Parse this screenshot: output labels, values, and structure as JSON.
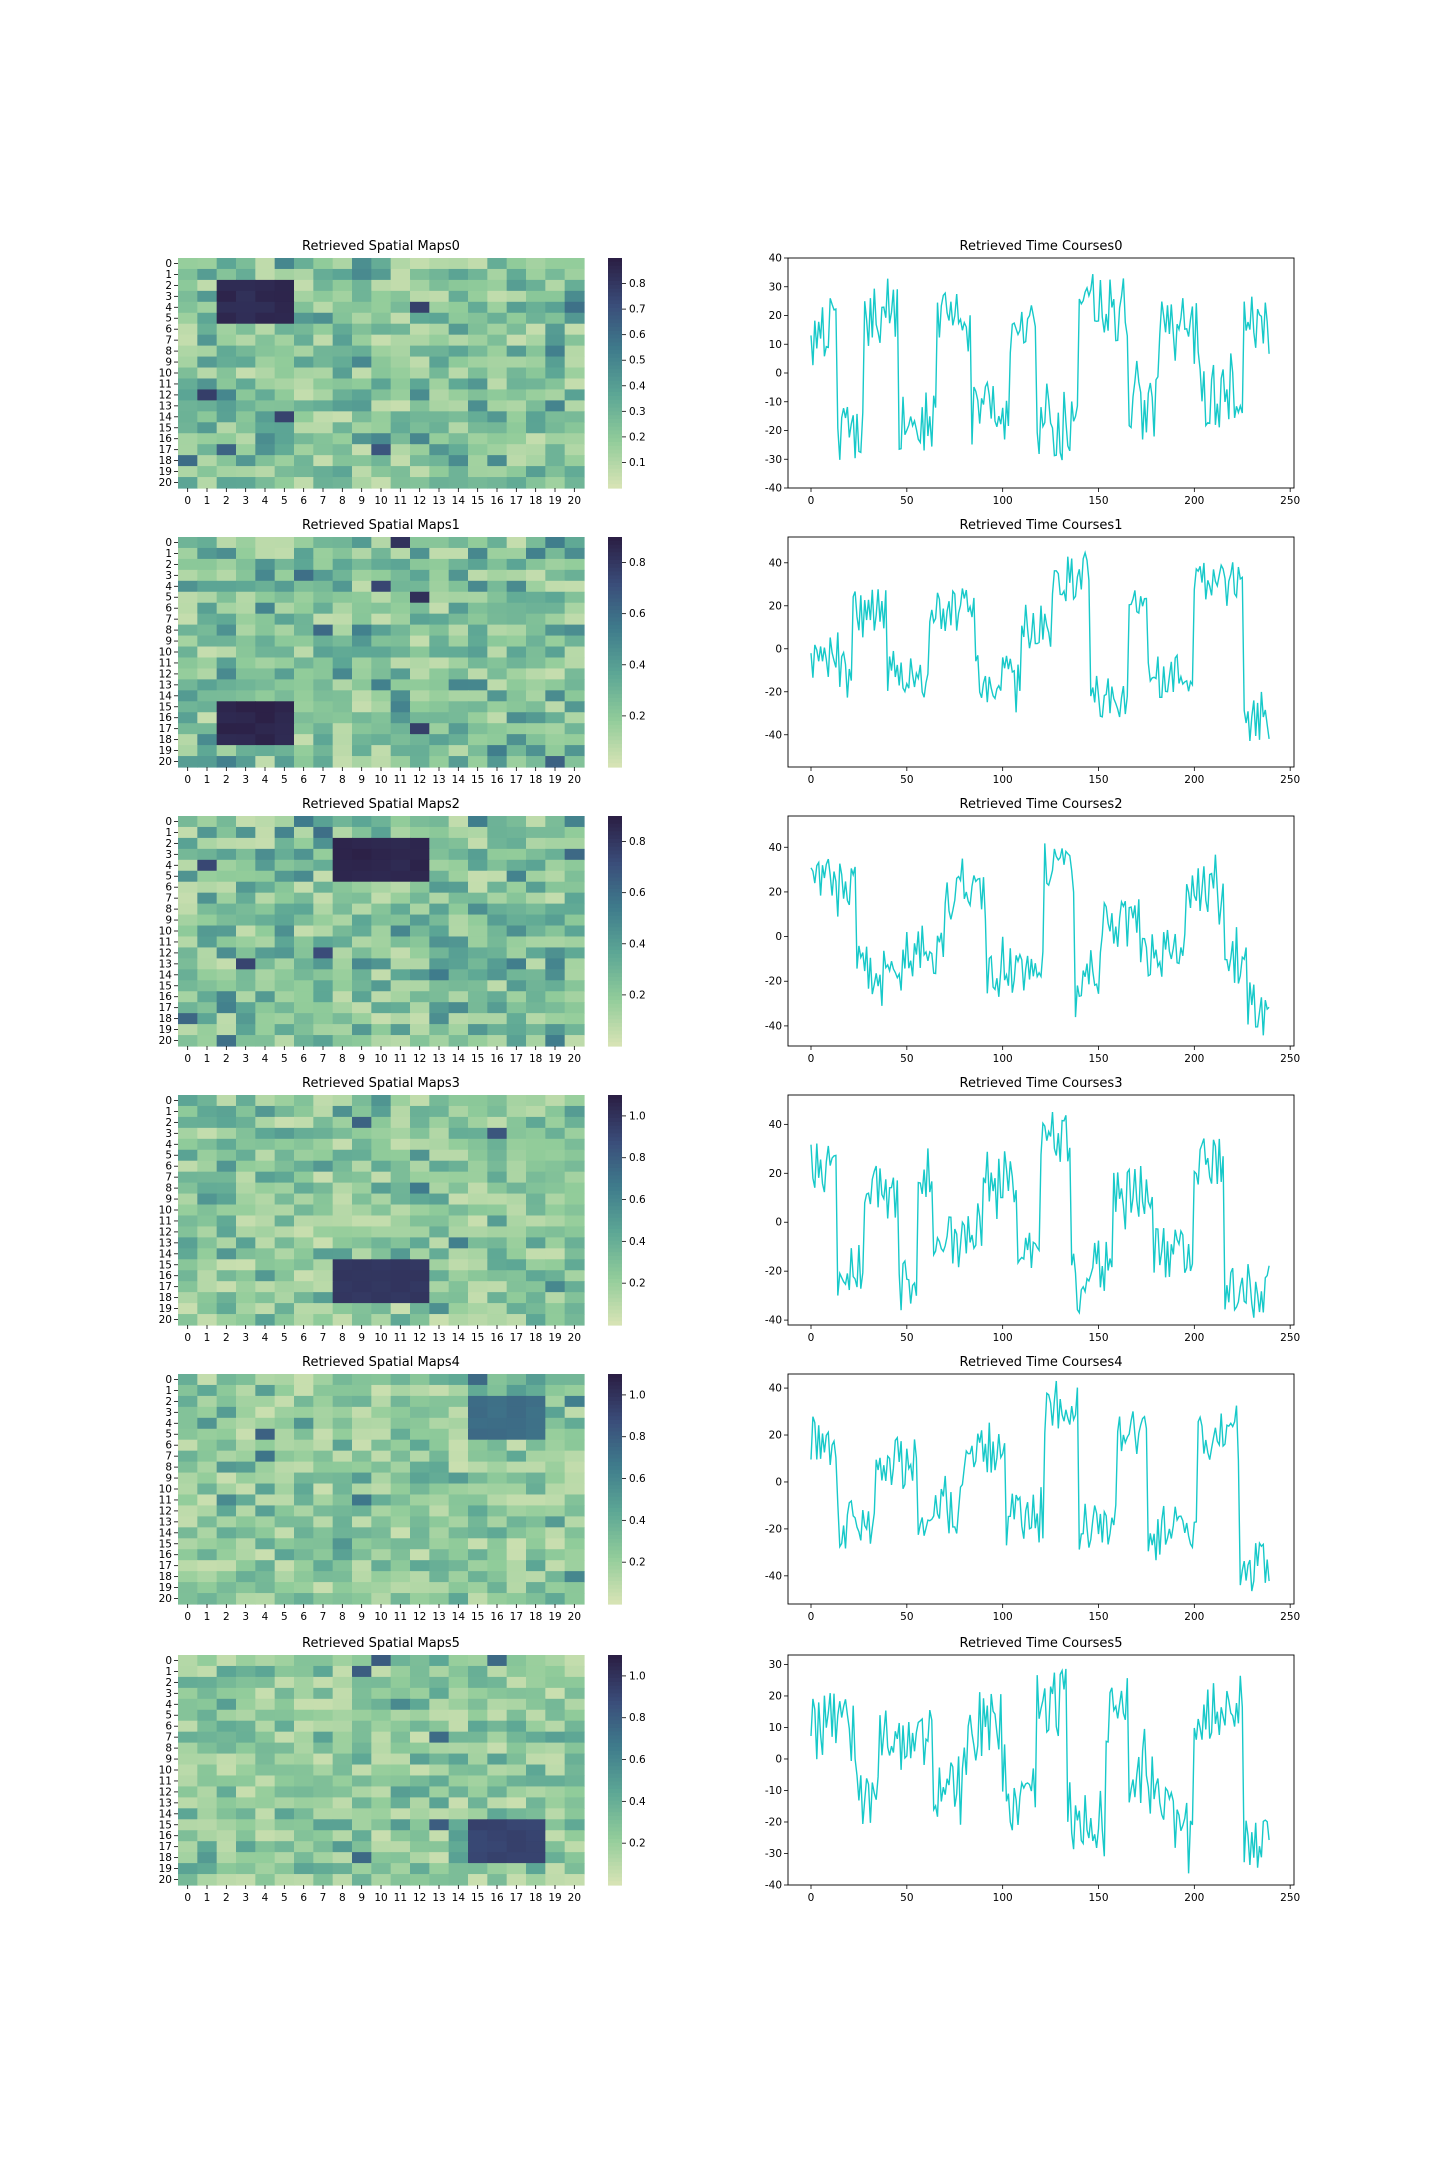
{
  "chart_data": [
    {
      "type": "heatmap",
      "title": "Retrieved Spatial Maps0",
      "rows": [
        "0",
        "1",
        "2",
        "3",
        "4",
        "5",
        "6",
        "7",
        "8",
        "9",
        "10",
        "11",
        "12",
        "13",
        "14",
        "15",
        "16",
        "17",
        "18",
        "19",
        "20"
      ],
      "cols": [
        "0",
        "1",
        "2",
        "3",
        "4",
        "5",
        "6",
        "7",
        "8",
        "9",
        "10",
        "11",
        "12",
        "13",
        "14",
        "15",
        "16",
        "17",
        "18",
        "19",
        "20"
      ],
      "colorbar_ticks": [
        "0.1",
        "0.2",
        "0.3",
        "0.4",
        "0.5",
        "0.6",
        "0.7",
        "0.8"
      ],
      "vmin": 0.0,
      "vmax": 0.9,
      "blocks": [
        {
          "rows": [
            2,
            5
          ],
          "cols": [
            2,
            5
          ],
          "value": 0.88
        }
      ],
      "colormap": [
        "#d6e3b4",
        "#91cc9a",
        "#5da795",
        "#3f7c8c",
        "#3a4d7a",
        "#2b1f45"
      ]
    },
    {
      "type": "line",
      "title": "Retrieved Time Courses0",
      "xticks": [
        0,
        50,
        100,
        150,
        200,
        250
      ],
      "yticks": [
        -40,
        -30,
        -20,
        -10,
        0,
        10,
        20,
        30,
        40
      ],
      "xlim": [
        -12,
        252
      ],
      "ylim": [
        -40,
        40
      ],
      "n_points": 240,
      "segments": [
        [
          0,
          14,
          15
        ],
        [
          14,
          28,
          -22
        ],
        [
          28,
          46,
          20
        ],
        [
          46,
          66,
          -16
        ],
        [
          66,
          84,
          18
        ],
        [
          84,
          104,
          -15
        ],
        [
          104,
          118,
          18
        ],
        [
          118,
          140,
          -20
        ],
        [
          140,
          166,
          22
        ],
        [
          166,
          182,
          -12
        ],
        [
          182,
          202,
          14
        ],
        [
          202,
          226,
          -8
        ],
        [
          226,
          240,
          16
        ]
      ],
      "color": "#17c9c9"
    },
    {
      "type": "heatmap",
      "title": "Retrieved Spatial Maps1",
      "rows": [
        "0",
        "1",
        "2",
        "3",
        "4",
        "5",
        "6",
        "7",
        "8",
        "9",
        "10",
        "11",
        "12",
        "13",
        "14",
        "15",
        "16",
        "17",
        "18",
        "19",
        "20"
      ],
      "cols": [
        "0",
        "1",
        "2",
        "3",
        "4",
        "5",
        "6",
        "7",
        "8",
        "9",
        "10",
        "11",
        "12",
        "13",
        "14",
        "15",
        "16",
        "17",
        "18",
        "19",
        "20"
      ],
      "colorbar_ticks": [
        "0.2",
        "0.4",
        "0.6",
        "0.8"
      ],
      "vmin": 0.0,
      "vmax": 0.9,
      "blocks": [
        {
          "rows": [
            15,
            18
          ],
          "cols": [
            2,
            5
          ],
          "value": 0.9
        }
      ],
      "colormap": [
        "#d6e3b4",
        "#91cc9a",
        "#5da795",
        "#3f7c8c",
        "#3a4d7a",
        "#2b1f45"
      ]
    },
    {
      "type": "line",
      "title": "Retrieved Time Courses1",
      "xticks": [
        0,
        50,
        100,
        150,
        200,
        250
      ],
      "yticks": [
        -40,
        -20,
        0,
        20,
        40
      ],
      "xlim": [
        -12,
        252
      ],
      "ylim": [
        -55,
        52
      ],
      "n_points": 240,
      "segments": [
        [
          0,
          12,
          -4
        ],
        [
          12,
          22,
          -12
        ],
        [
          22,
          40,
          18
        ],
        [
          40,
          62,
          -12
        ],
        [
          62,
          86,
          18
        ],
        [
          86,
          110,
          -14
        ],
        [
          110,
          126,
          10
        ],
        [
          126,
          146,
          32
        ],
        [
          146,
          166,
          -22
        ],
        [
          166,
          176,
          26
        ],
        [
          176,
          200,
          -14
        ],
        [
          200,
          226,
          30
        ],
        [
          226,
          240,
          -35
        ]
      ],
      "color": "#17c9c9"
    },
    {
      "type": "heatmap",
      "title": "Retrieved Spatial Maps2",
      "rows": [
        "0",
        "1",
        "2",
        "3",
        "4",
        "5",
        "6",
        "7",
        "8",
        "9",
        "10",
        "11",
        "12",
        "13",
        "14",
        "15",
        "16",
        "17",
        "18",
        "19",
        "20"
      ],
      "cols": [
        "0",
        "1",
        "2",
        "3",
        "4",
        "5",
        "6",
        "7",
        "8",
        "9",
        "10",
        "11",
        "12",
        "13",
        "14",
        "15",
        "16",
        "17",
        "18",
        "19",
        "20"
      ],
      "colorbar_ticks": [
        "0.2",
        "0.4",
        "0.6",
        "0.8"
      ],
      "vmin": 0.0,
      "vmax": 0.9,
      "blocks": [
        {
          "rows": [
            2,
            5
          ],
          "cols": [
            8,
            12
          ],
          "value": 0.9
        }
      ],
      "colormap": [
        "#d6e3b4",
        "#91cc9a",
        "#5da795",
        "#3f7c8c",
        "#3a4d7a",
        "#2b1f45"
      ]
    },
    {
      "type": "line",
      "title": "Retrieved Time Courses2",
      "xticks": [
        0,
        50,
        100,
        150,
        200,
        250
      ],
      "yticks": [
        -40,
        -20,
        0,
        20,
        40
      ],
      "xlim": [
        -12,
        252
      ],
      "ylim": [
        -49,
        54
      ],
      "n_points": 240,
      "segments": [
        [
          0,
          24,
          25
        ],
        [
          24,
          50,
          -15
        ],
        [
          50,
          70,
          -6
        ],
        [
          70,
          92,
          18
        ],
        [
          92,
          122,
          -16
        ],
        [
          122,
          138,
          32
        ],
        [
          138,
          152,
          -16
        ],
        [
          152,
          172,
          6
        ],
        [
          172,
          196,
          -8
        ],
        [
          196,
          216,
          20
        ],
        [
          216,
          228,
          -10
        ],
        [
          228,
          240,
          -30
        ]
      ],
      "color": "#17c9c9"
    },
    {
      "type": "heatmap",
      "title": "Retrieved Spatial Maps3",
      "rows": [
        "0",
        "1",
        "2",
        "3",
        "4",
        "5",
        "6",
        "7",
        "8",
        "9",
        "10",
        "11",
        "12",
        "13",
        "14",
        "15",
        "16",
        "17",
        "18",
        "19",
        "20"
      ],
      "cols": [
        "0",
        "1",
        "2",
        "3",
        "4",
        "5",
        "6",
        "7",
        "8",
        "9",
        "10",
        "11",
        "12",
        "13",
        "14",
        "15",
        "16",
        "17",
        "18",
        "19",
        "20"
      ],
      "colorbar_ticks": [
        "0.2",
        "0.4",
        "0.6",
        "0.8",
        "1.0"
      ],
      "vmin": 0.0,
      "vmax": 1.1,
      "blocks": [
        {
          "rows": [
            15,
            18
          ],
          "cols": [
            8,
            12
          ],
          "value": 1.0
        }
      ],
      "colormap": [
        "#d6e3b4",
        "#91cc9a",
        "#5da795",
        "#3f7c8c",
        "#3a4d7a",
        "#2b1f45"
      ]
    },
    {
      "type": "line",
      "title": "Retrieved Time Courses3",
      "xticks": [
        0,
        50,
        100,
        150,
        200,
        250
      ],
      "yticks": [
        -40,
        -20,
        0,
        20,
        40
      ],
      "xlim": [
        -12,
        252
      ],
      "ylim": [
        -42,
        52
      ],
      "n_points": 240,
      "segments": [
        [
          0,
          14,
          22
        ],
        [
          14,
          28,
          -20
        ],
        [
          28,
          46,
          12
        ],
        [
          46,
          56,
          -26
        ],
        [
          56,
          64,
          20
        ],
        [
          64,
          90,
          -8
        ],
        [
          90,
          108,
          18
        ],
        [
          108,
          120,
          -12
        ],
        [
          120,
          136,
          34
        ],
        [
          136,
          158,
          -18
        ],
        [
          158,
          178,
          12
        ],
        [
          178,
          200,
          -12
        ],
        [
          200,
          216,
          24
        ],
        [
          216,
          240,
          -26
        ]
      ],
      "color": "#17c9c9"
    },
    {
      "type": "heatmap",
      "title": "Retrieved Spatial Maps4",
      "rows": [
        "0",
        "1",
        "2",
        "3",
        "4",
        "5",
        "6",
        "7",
        "8",
        "9",
        "10",
        "11",
        "12",
        "13",
        "14",
        "15",
        "16",
        "17",
        "18",
        "19",
        "20"
      ],
      "cols": [
        "0",
        "1",
        "2",
        "3",
        "4",
        "5",
        "6",
        "7",
        "8",
        "9",
        "10",
        "11",
        "12",
        "13",
        "14",
        "15",
        "16",
        "17",
        "18",
        "19",
        "20"
      ],
      "colorbar_ticks": [
        "0.2",
        "0.4",
        "0.6",
        "0.8",
        "1.0"
      ],
      "vmin": 0.0,
      "vmax": 1.1,
      "blocks": [
        {
          "rows": [
            2,
            5
          ],
          "cols": [
            15,
            18
          ],
          "value": 0.75
        }
      ],
      "colormap": [
        "#d6e3b4",
        "#91cc9a",
        "#5da795",
        "#3f7c8c",
        "#3a4d7a",
        "#2b1f45"
      ]
    },
    {
      "type": "line",
      "title": "Retrieved Time Courses4",
      "xticks": [
        0,
        50,
        100,
        150,
        200,
        250
      ],
      "yticks": [
        -40,
        -20,
        0,
        20,
        40
      ],
      "xlim": [
        -12,
        252
      ],
      "ylim": [
        -52,
        46
      ],
      "n_points": 240,
      "segments": [
        [
          0,
          14,
          18
        ],
        [
          14,
          34,
          -18
        ],
        [
          34,
          56,
          8
        ],
        [
          56,
          80,
          -12
        ],
        [
          80,
          102,
          12
        ],
        [
          102,
          122,
          -16
        ],
        [
          122,
          140,
          30
        ],
        [
          140,
          160,
          -18
        ],
        [
          160,
          176,
          22
        ],
        [
          176,
          202,
          -20
        ],
        [
          202,
          224,
          20
        ],
        [
          224,
          240,
          -36
        ]
      ],
      "color": "#17c9c9"
    },
    {
      "type": "heatmap",
      "title": "Retrieved Spatial Maps5",
      "rows": [
        "0",
        "1",
        "2",
        "3",
        "4",
        "5",
        "6",
        "7",
        "8",
        "9",
        "10",
        "11",
        "12",
        "13",
        "14",
        "15",
        "16",
        "17",
        "18",
        "19",
        "20"
      ],
      "cols": [
        "0",
        "1",
        "2",
        "3",
        "4",
        "5",
        "6",
        "7",
        "8",
        "9",
        "10",
        "11",
        "12",
        "13",
        "14",
        "15",
        "16",
        "17",
        "18",
        "19",
        "20"
      ],
      "colorbar_ticks": [
        "0.2",
        "0.4",
        "0.6",
        "0.8",
        "1.0"
      ],
      "vmin": 0.0,
      "vmax": 1.1,
      "blocks": [
        {
          "rows": [
            15,
            18
          ],
          "cols": [
            15,
            18
          ],
          "value": 0.95
        }
      ],
      "colormap": [
        "#d6e3b4",
        "#91cc9a",
        "#5da795",
        "#3f7c8c",
        "#3a4d7a",
        "#2b1f45"
      ]
    },
    {
      "type": "line",
      "title": "Retrieved Time Courses5",
      "xticks": [
        0,
        50,
        100,
        150,
        200,
        250
      ],
      "yticks": [
        -40,
        -30,
        -20,
        -10,
        0,
        10,
        20,
        30
      ],
      "xlim": [
        -12,
        252
      ],
      "ylim": [
        -40,
        33
      ],
      "n_points": 240,
      "segments": [
        [
          0,
          24,
          10
        ],
        [
          24,
          36,
          -14
        ],
        [
          36,
          64,
          6
        ],
        [
          64,
          80,
          -10
        ],
        [
          80,
          100,
          10
        ],
        [
          100,
          118,
          -12
        ],
        [
          118,
          134,
          18
        ],
        [
          134,
          154,
          -18
        ],
        [
          154,
          166,
          16
        ],
        [
          166,
          184,
          -8
        ],
        [
          184,
          200,
          -18
        ],
        [
          200,
          226,
          16
        ],
        [
          226,
          240,
          -28
        ]
      ],
      "color": "#17c9c9"
    }
  ]
}
